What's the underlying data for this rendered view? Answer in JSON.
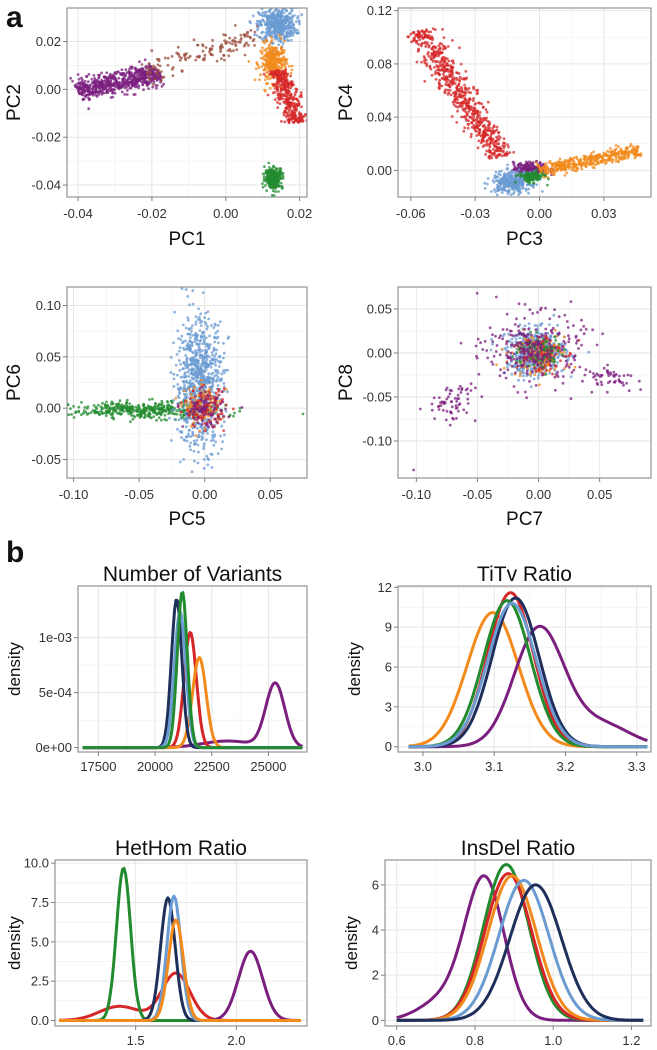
{
  "figure_labels": {
    "a": "a",
    "b": "b"
  },
  "colors": {
    "purple": "#7b1f7f",
    "red": "#d62728",
    "orange": "#f28a1c",
    "green": "#238b2f",
    "blue": "#6a9bd1",
    "navy": "#1f2f5c",
    "brown": "#9a4b3a"
  },
  "chart_data": [
    {
      "id": "pca12",
      "type": "scatter",
      "title": "",
      "xlabel": "PC1",
      "ylabel": "PC2",
      "xlim": [
        -0.043,
        0.022
      ],
      "ylim": [
        -0.045,
        0.034
      ],
      "xticks": [
        -0.04,
        -0.02,
        0.0,
        0.02
      ],
      "xtick_labels": [
        "-0.04",
        "-0.02",
        "0.00",
        "0.02"
      ],
      "yticks": [
        -0.04,
        -0.02,
        0.0,
        0.02
      ],
      "ytick_labels": [
        "-0.04",
        "-0.02",
        "0.00",
        "0.02"
      ],
      "clusters": [
        {
          "color": "purple",
          "kind": "segment",
          "x0": -0.04,
          "y0": -0.001,
          "x1": -0.018,
          "y1": 0.007,
          "spread": 0.0022,
          "n": 600
        },
        {
          "color": "brown",
          "kind": "segment",
          "x0": -0.022,
          "y0": 0.006,
          "x1": 0.01,
          "y1": 0.024,
          "spread": 0.0025,
          "n": 140
        },
        {
          "color": "blue",
          "kind": "blob",
          "cx": 0.014,
          "cy": 0.027,
          "sx": 0.0025,
          "sy": 0.0035,
          "n": 450
        },
        {
          "color": "orange",
          "kind": "blob",
          "cx": 0.013,
          "cy": 0.011,
          "sx": 0.0018,
          "sy": 0.004,
          "n": 300
        },
        {
          "color": "red",
          "kind": "segment",
          "x0": 0.014,
          "y0": 0.008,
          "x1": 0.019,
          "y1": -0.014,
          "spread": 0.0016,
          "n": 350
        },
        {
          "color": "green",
          "kind": "blob",
          "cx": 0.013,
          "cy": -0.037,
          "sx": 0.0012,
          "sy": 0.0022,
          "n": 250
        }
      ]
    },
    {
      "id": "pca34",
      "type": "scatter",
      "title": "",
      "xlabel": "PC3",
      "ylabel": "PC4",
      "xlim": [
        -0.066,
        0.052
      ],
      "ylim": [
        -0.02,
        0.122
      ],
      "xticks": [
        -0.06,
        -0.03,
        0.0,
        0.03
      ],
      "xtick_labels": [
        "-0.06",
        "-0.03",
        "0.00",
        "0.03"
      ],
      "yticks": [
        0.0,
        0.04,
        0.08,
        0.12
      ],
      "ytick_labels": [
        "0.00",
        "0.04",
        "0.08",
        "0.12"
      ],
      "clusters": [
        {
          "color": "red",
          "kind": "segment",
          "x0": -0.056,
          "y0": 0.105,
          "x1": -0.018,
          "y1": 0.01,
          "spread": 0.0035,
          "n": 650
        },
        {
          "color": "purple",
          "kind": "blob",
          "cx": -0.004,
          "cy": 0.001,
          "sx": 0.004,
          "sy": 0.0025,
          "n": 220
        },
        {
          "color": "orange",
          "kind": "segment",
          "x0": 0.0,
          "y0": 0.0,
          "x1": 0.047,
          "y1": 0.015,
          "spread": 0.0025,
          "n": 420
        },
        {
          "color": "blue",
          "kind": "blob",
          "cx": -0.013,
          "cy": -0.009,
          "sx": 0.0045,
          "sy": 0.004,
          "n": 300
        },
        {
          "color": "green",
          "kind": "blob",
          "cx": -0.004,
          "cy": -0.005,
          "sx": 0.003,
          "sy": 0.002,
          "n": 120
        }
      ]
    },
    {
      "id": "pca56",
      "type": "scatter",
      "title": "",
      "xlabel": "PC5",
      "ylabel": "PC6",
      "xlim": [
        -0.105,
        0.078
      ],
      "ylim": [
        -0.068,
        0.118
      ],
      "xticks": [
        -0.1,
        -0.05,
        0.0,
        0.05
      ],
      "xtick_labels": [
        "-0.10",
        "-0.05",
        "0.00",
        "0.05"
      ],
      "yticks": [
        -0.05,
        0.0,
        0.05,
        0.1
      ],
      "ytick_labels": [
        "-0.05",
        "0.00",
        "0.05",
        "0.10"
      ],
      "clusters": [
        {
          "color": "green",
          "kind": "blob",
          "cx": -0.045,
          "cy": -0.002,
          "sx": 0.028,
          "sy": 0.004,
          "n": 420
        },
        {
          "color": "blue",
          "kind": "blob",
          "cx": -0.004,
          "cy": 0.025,
          "sx": 0.009,
          "sy": 0.032,
          "n": 800
        },
        {
          "color": "orange",
          "kind": "blob",
          "cx": -0.001,
          "cy": 0.001,
          "sx": 0.007,
          "sy": 0.01,
          "n": 120
        },
        {
          "color": "red",
          "kind": "blob",
          "cx": 0.0,
          "cy": 0.0,
          "sx": 0.008,
          "sy": 0.009,
          "n": 120
        },
        {
          "color": "purple",
          "kind": "blob",
          "cx": 0.0,
          "cy": -0.002,
          "sx": 0.008,
          "sy": 0.008,
          "n": 80
        }
      ]
    },
    {
      "id": "pca78",
      "type": "scatter",
      "title": "",
      "xlabel": "PC7",
      "ylabel": "PC8",
      "xlim": [
        -0.115,
        0.092
      ],
      "ylim": [
        -0.142,
        0.075
      ],
      "xticks": [
        -0.1,
        -0.05,
        0.0,
        0.05
      ],
      "xtick_labels": [
        "-0.10",
        "-0.05",
        "0.00",
        "0.05"
      ],
      "yticks": [
        -0.1,
        -0.05,
        0.0,
        0.05
      ],
      "ytick_labels": [
        "-0.10",
        "-0.05",
        "0.00",
        "0.05"
      ],
      "clusters": [
        {
          "color": "blue",
          "kind": "blob",
          "cx": -0.002,
          "cy": 0.0,
          "sx": 0.012,
          "sy": 0.013,
          "n": 480
        },
        {
          "color": "orange",
          "kind": "blob",
          "cx": 0.0,
          "cy": -0.002,
          "sx": 0.011,
          "sy": 0.012,
          "n": 140
        },
        {
          "color": "red",
          "kind": "blob",
          "cx": 0.0,
          "cy": 0.0,
          "sx": 0.01,
          "sy": 0.012,
          "n": 100
        },
        {
          "color": "green",
          "kind": "blob",
          "cx": 0.0,
          "cy": 0.001,
          "sx": 0.01,
          "sy": 0.01,
          "n": 80
        },
        {
          "color": "purple",
          "kind": "blob",
          "cx": -0.003,
          "cy": 0.004,
          "sx": 0.02,
          "sy": 0.02,
          "n": 260
        },
        {
          "color": "purple",
          "kind": "blob",
          "cx": -0.07,
          "cy": -0.055,
          "sx": 0.01,
          "sy": 0.012,
          "n": 65
        },
        {
          "color": "purple",
          "kind": "blob",
          "cx": 0.058,
          "cy": -0.028,
          "sx": 0.011,
          "sy": 0.006,
          "n": 50
        },
        {
          "color": "purple",
          "kind": "blob",
          "cx": -0.102,
          "cy": -0.132,
          "sx": 0.0005,
          "sy": 0.0005,
          "n": 1
        }
      ]
    },
    {
      "id": "nvariants",
      "type": "line",
      "title": "Number of Variants",
      "xlabel": "",
      "ylabel": "density",
      "xlim": [
        16600,
        26700
      ],
      "ylim": [
        -4e-05,
        0.00147
      ],
      "xticks": [
        17500,
        20000,
        22500,
        25000
      ],
      "xtick_labels": [
        "17500",
        "20000",
        "22500",
        "25000"
      ],
      "yticks": [
        0,
        0.0005,
        0.001
      ],
      "ytick_labels": [
        "0e+00",
        "5e-04",
        "1e-03"
      ],
      "x_range": [
        16800,
        26500
      ],
      "series": [
        {
          "name": "purple",
          "color": "purple",
          "components": [
            {
              "mu": 25300,
              "sd": 420,
              "peak": 0.00058
            },
            {
              "mu": 23200,
              "sd": 1100,
              "peak": 6e-05
            }
          ]
        },
        {
          "name": "red",
          "color": "red",
          "components": [
            {
              "mu": 21550,
              "sd": 270,
              "peak": 0.00105
            }
          ]
        },
        {
          "name": "orange",
          "color": "orange",
          "components": [
            {
              "mu": 21950,
              "sd": 300,
              "peak": 0.00082
            }
          ]
        },
        {
          "name": "navy",
          "color": "navy",
          "components": [
            {
              "mu": 20950,
              "sd": 230,
              "peak": 0.00135
            }
          ]
        },
        {
          "name": "blue",
          "color": "blue",
          "components": [
            {
              "mu": 21100,
              "sd": 250,
              "peak": 0.00124
            }
          ]
        },
        {
          "name": "green",
          "color": "green",
          "components": [
            {
              "mu": 21200,
              "sd": 220,
              "peak": 0.00142
            }
          ]
        }
      ]
    },
    {
      "id": "titv",
      "type": "line",
      "title": "TiTv Ratio",
      "xlabel": "",
      "ylabel": "density",
      "xlim": [
        2.965,
        3.32
      ],
      "ylim": [
        -0.4,
        12.1
      ],
      "xticks": [
        3.0,
        3.1,
        3.2,
        3.3
      ],
      "xtick_labels": [
        "3.0",
        "3.1",
        "3.2",
        "3.3"
      ],
      "yticks": [
        0,
        3,
        6,
        9,
        12
      ],
      "ytick_labels": [
        "0",
        "3",
        "6",
        "9",
        "12"
      ],
      "x_range": [
        2.98,
        3.315
      ],
      "series": [
        {
          "name": "orange",
          "color": "orange",
          "components": [
            {
              "mu": 3.098,
              "sd": 0.036,
              "peak": 10.1
            }
          ]
        },
        {
          "name": "purple",
          "color": "purple",
          "components": [
            {
              "mu": 3.163,
              "sd": 0.035,
              "peak": 8.9
            },
            {
              "mu": 3.25,
              "sd": 0.04,
              "peak": 1.7
            }
          ]
        },
        {
          "name": "red",
          "color": "red",
          "components": [
            {
              "mu": 3.123,
              "sd": 0.032,
              "peak": 11.6
            }
          ]
        },
        {
          "name": "navy",
          "color": "navy",
          "components": [
            {
              "mu": 3.13,
              "sd": 0.033,
              "peak": 11.2
            }
          ]
        },
        {
          "name": "green",
          "color": "green",
          "components": [
            {
              "mu": 3.118,
              "sd": 0.033,
              "peak": 11.0
            }
          ]
        },
        {
          "name": "blue",
          "color": "blue",
          "components": [
            {
              "mu": 3.125,
              "sd": 0.034,
              "peak": 10.8
            }
          ]
        }
      ]
    },
    {
      "id": "hethom",
      "type": "line",
      "title": "HetHom Ratio",
      "xlabel": "",
      "ylabel": "density",
      "xlim": [
        1.1,
        2.35
      ],
      "ylim": [
        -0.35,
        10.2
      ],
      "xticks": [
        1.5,
        2.0
      ],
      "xtick_labels": [
        "1.5",
        "2.0"
      ],
      "yticks": [
        0,
        2.5,
        5,
        7.5,
        10
      ],
      "ytick_labels": [
        "0.0",
        "2.5",
        "5.0",
        "7.5",
        "10.0"
      ],
      "x_range": [
        1.12,
        2.32
      ],
      "series": [
        {
          "name": "red",
          "color": "red",
          "components": [
            {
              "mu": 1.7,
              "sd": 0.07,
              "peak": 3.0
            },
            {
              "mu": 1.42,
              "sd": 0.1,
              "peak": 0.9
            }
          ]
        },
        {
          "name": "purple",
          "color": "purple",
          "components": [
            {
              "mu": 2.07,
              "sd": 0.06,
              "peak": 4.4
            }
          ]
        },
        {
          "name": "green",
          "color": "green",
          "components": [
            {
              "mu": 1.44,
              "sd": 0.035,
              "peak": 9.7
            }
          ]
        },
        {
          "name": "navy",
          "color": "navy",
          "components": [
            {
              "mu": 1.66,
              "sd": 0.036,
              "peak": 7.8
            }
          ]
        },
        {
          "name": "blue",
          "color": "blue",
          "components": [
            {
              "mu": 1.69,
              "sd": 0.035,
              "peak": 7.9
            }
          ]
        },
        {
          "name": "orange",
          "color": "orange",
          "components": [
            {
              "mu": 1.7,
              "sd": 0.037,
              "peak": 6.4
            }
          ]
        }
      ]
    },
    {
      "id": "insdel",
      "type": "line",
      "title": "InsDel Ratio",
      "xlabel": "",
      "ylabel": "density",
      "xlim": [
        0.57,
        1.25
      ],
      "ylim": [
        -0.25,
        7.1
      ],
      "xticks": [
        0.6,
        0.8,
        1.0,
        1.2
      ],
      "xtick_labels": [
        "0.6",
        "0.8",
        "1.0",
        "1.2"
      ],
      "yticks": [
        0,
        2,
        4,
        6
      ],
      "ytick_labels": [
        "0",
        "2",
        "4",
        "6"
      ],
      "x_range": [
        0.6,
        1.23
      ],
      "series": [
        {
          "name": "purple",
          "color": "purple",
          "components": [
            {
              "mu": 0.825,
              "sd": 0.05,
              "peak": 6.2
            },
            {
              "mu": 0.72,
              "sd": 0.06,
              "peak": 0.9
            }
          ]
        },
        {
          "name": "green",
          "color": "green",
          "components": [
            {
              "mu": 0.88,
              "sd": 0.058,
              "peak": 6.9
            }
          ]
        },
        {
          "name": "red",
          "color": "red",
          "components": [
            {
              "mu": 0.885,
              "sd": 0.06,
              "peak": 6.5
            }
          ]
        },
        {
          "name": "orange",
          "color": "orange",
          "components": [
            {
              "mu": 0.895,
              "sd": 0.062,
              "peak": 6.4
            }
          ]
        },
        {
          "name": "blue",
          "color": "blue",
          "components": [
            {
              "mu": 0.925,
              "sd": 0.064,
              "peak": 6.2
            }
          ]
        },
        {
          "name": "navy",
          "color": "navy",
          "components": [
            {
              "mu": 0.955,
              "sd": 0.066,
              "peak": 6.0
            }
          ]
        }
      ]
    }
  ]
}
